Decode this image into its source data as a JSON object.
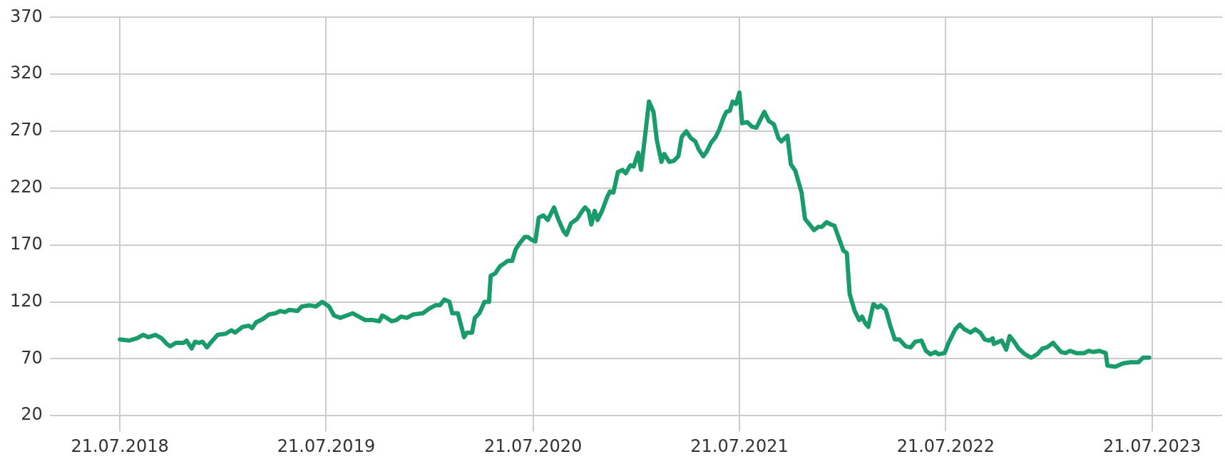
{
  "chart_data": {
    "type": "line",
    "x": [
      "2018-07-21",
      "2018-08-06",
      "2018-08-20",
      "2018-08-31",
      "2018-09-09",
      "2018-09-22",
      "2018-10-03",
      "2018-10-12",
      "2018-10-18",
      "2018-10-28",
      "2018-11-11",
      "2018-11-16",
      "2018-11-25",
      "2018-12-01",
      "2018-12-08",
      "2018-12-14",
      "2018-12-22",
      "2018-12-30",
      "2019-01-10",
      "2019-01-24",
      "2019-02-03",
      "2019-02-10",
      "2019-02-23",
      "2019-03-06",
      "2019-03-12",
      "2019-03-19",
      "2019-03-31",
      "2019-04-11",
      "2019-04-22",
      "2019-05-01",
      "2019-05-09",
      "2019-05-17",
      "2019-05-31",
      "2019-06-08",
      "2019-06-22",
      "2019-07-03",
      "2019-07-14",
      "2019-07-26",
      "2019-08-04",
      "2019-08-15",
      "2019-08-26",
      "2019-09-06",
      "2019-09-17",
      "2019-09-28",
      "2019-10-12",
      "2019-10-23",
      "2019-10-28",
      "2019-11-05",
      "2019-11-14",
      "2019-11-22",
      "2019-11-30",
      "2019-12-11",
      "2019-12-22",
      "2020-01-08",
      "2020-01-19",
      "2020-01-30",
      "2020-02-07",
      "2020-02-15",
      "2020-02-24",
      "2020-02-29",
      "2020-03-10",
      "2020-03-21",
      "2020-03-26",
      "2020-04-04",
      "2020-04-09",
      "2020-04-17",
      "2020-04-26",
      "2020-05-04",
      "2020-05-07",
      "2020-05-15",
      "2020-05-23",
      "2020-06-06",
      "2020-06-14",
      "2020-06-20",
      "2020-06-28",
      "2020-07-06",
      "2020-07-12",
      "2020-07-17",
      "2020-07-25",
      "2020-07-31",
      "2020-08-08",
      "2020-08-16",
      "2020-08-27",
      "2020-09-04",
      "2020-09-13",
      "2020-09-18",
      "2020-09-26",
      "2020-10-07",
      "2020-10-16",
      "2020-10-21",
      "2020-10-27",
      "2020-11-01",
      "2020-11-07",
      "2020-11-12",
      "2020-11-20",
      "2020-11-29",
      "2020-12-04",
      "2020-12-10",
      "2020-12-18",
      "2020-12-26",
      "2021-01-01",
      "2021-01-09",
      "2021-01-15",
      "2021-01-23",
      "2021-01-28",
      "2021-02-06",
      "2021-02-11",
      "2021-02-19",
      "2021-02-25",
      "2021-03-05",
      "2021-03-10",
      "2021-03-19",
      "2021-03-27",
      "2021-04-04",
      "2021-04-10",
      "2021-04-18",
      "2021-04-26",
      "2021-05-04",
      "2021-05-10",
      "2021-05-18",
      "2021-05-24",
      "2021-06-01",
      "2021-06-09",
      "2021-06-15",
      "2021-06-23",
      "2021-06-28",
      "2021-07-04",
      "2021-07-09",
      "2021-07-15",
      "2021-07-21",
      "2021-07-26",
      "2021-08-04",
      "2021-08-12",
      "2021-08-20",
      "2021-09-03",
      "2021-09-11",
      "2021-09-20",
      "2021-09-28",
      "2021-10-03",
      "2021-10-14",
      "2021-10-20",
      "2021-10-28",
      "2021-11-08",
      "2021-11-14",
      "2021-11-22",
      "2021-11-30",
      "2021-12-08",
      "2021-12-14",
      "2021-12-22",
      "2021-12-30",
      "2022-01-05",
      "2022-01-13",
      "2022-01-21",
      "2022-01-27",
      "2022-02-01",
      "2022-02-10",
      "2022-02-18",
      "2022-02-23",
      "2022-03-01",
      "2022-03-06",
      "2022-03-15",
      "2022-03-23",
      "2022-03-28",
      "2022-04-06",
      "2022-04-14",
      "2022-04-22",
      "2022-04-30",
      "2022-05-11",
      "2022-05-20",
      "2022-05-28",
      "2022-06-08",
      "2022-06-16",
      "2022-06-24",
      "2022-07-03",
      "2022-07-08",
      "2022-07-19",
      "2022-07-26",
      "2022-08-07",
      "2022-08-15",
      "2022-08-23",
      "2022-09-03",
      "2022-09-11",
      "2022-09-20",
      "2022-09-28",
      "2022-10-06",
      "2022-10-12",
      "2022-10-14",
      "2022-10-28",
      "2022-11-05",
      "2022-11-11",
      "2022-11-19",
      "2022-11-27",
      "2022-12-08",
      "2022-12-19",
      "2022-12-30",
      "2023-01-08",
      "2023-01-16",
      "2023-01-27",
      "2023-02-01",
      "2023-02-10",
      "2023-02-18",
      "2023-02-26",
      "2023-03-09",
      "2023-03-23",
      "2023-03-31",
      "2023-04-08",
      "2023-04-19",
      "2023-04-30",
      "2023-05-03",
      "2023-05-17",
      "2023-05-31",
      "2023-06-13",
      "2023-06-27",
      "2023-07-05",
      "2023-07-16"
    ],
    "series": [
      {
        "color": "#1a9b6a",
        "values": [
          87,
          86,
          88,
          91,
          89,
          91,
          88,
          83,
          81,
          84,
          84,
          86,
          79,
          85,
          84,
          85,
          80,
          85,
          91,
          92,
          95,
          93,
          98,
          99,
          97,
          102,
          105,
          109,
          110,
          112,
          111,
          113,
          112,
          116,
          117,
          116,
          120,
          116,
          108,
          106,
          108,
          110,
          107,
          104,
          104,
          103,
          108,
          106,
          103,
          104,
          107,
          106,
          109,
          110,
          114,
          117,
          117,
          122,
          120,
          110,
          110,
          89,
          93,
          93,
          106,
          110,
          120,
          120,
          143,
          145,
          151,
          156,
          156,
          166,
          172,
          177,
          177,
          175,
          173,
          194,
          196,
          192,
          203,
          192,
          182,
          179,
          189,
          193,
          200,
          203,
          200,
          188,
          200,
          192,
          200,
          212,
          217,
          216,
          234,
          236,
          233,
          240,
          239,
          251,
          236,
          274,
          296,
          287,
          262,
          243,
          250,
          243,
          244,
          248,
          265,
          270,
          264,
          261,
          254,
          248,
          252,
          260,
          265,
          271,
          282,
          287,
          288,
          296,
          294,
          304,
          277,
          278,
          274,
          273,
          287,
          279,
          276,
          264,
          261,
          266,
          241,
          235,
          216,
          193,
          188,
          183,
          186,
          186,
          190,
          188,
          187,
          176,
          165,
          163,
          127,
          112,
          104,
          107,
          101,
          98,
          118,
          115,
          117,
          113,
          99,
          87,
          87,
          81,
          80,
          85,
          86,
          77,
          74,
          76,
          74,
          75,
          84,
          96,
          100,
          96,
          93,
          96,
          93,
          87,
          86,
          88,
          83,
          86,
          78,
          90,
          85,
          79,
          74,
          71,
          74,
          79,
          80,
          84,
          81,
          76,
          75,
          77,
          75,
          75,
          77,
          76,
          77,
          75,
          64,
          63,
          66,
          67,
          67,
          71,
          71
        ]
      }
    ],
    "xlim": [
      "2018-03-19",
      "2023-11-22"
    ],
    "xticks": [
      {
        "value": "2018-07-21",
        "label": "21.07.2018"
      },
      {
        "value": "2019-07-21",
        "label": "21.07.2019"
      },
      {
        "value": "2020-07-21",
        "label": "21.07.2020"
      },
      {
        "value": "2021-07-21",
        "label": "21.07.2021"
      },
      {
        "value": "2022-07-21",
        "label": "21.07.2022"
      },
      {
        "value": "2023-07-21",
        "label": "21.07.2023"
      }
    ],
    "ylim": [
      20,
      370
    ],
    "yticks": [
      20,
      70,
      120,
      170,
      220,
      270,
      320,
      370
    ],
    "grid": true,
    "marker": "none",
    "line_style": "solid"
  }
}
